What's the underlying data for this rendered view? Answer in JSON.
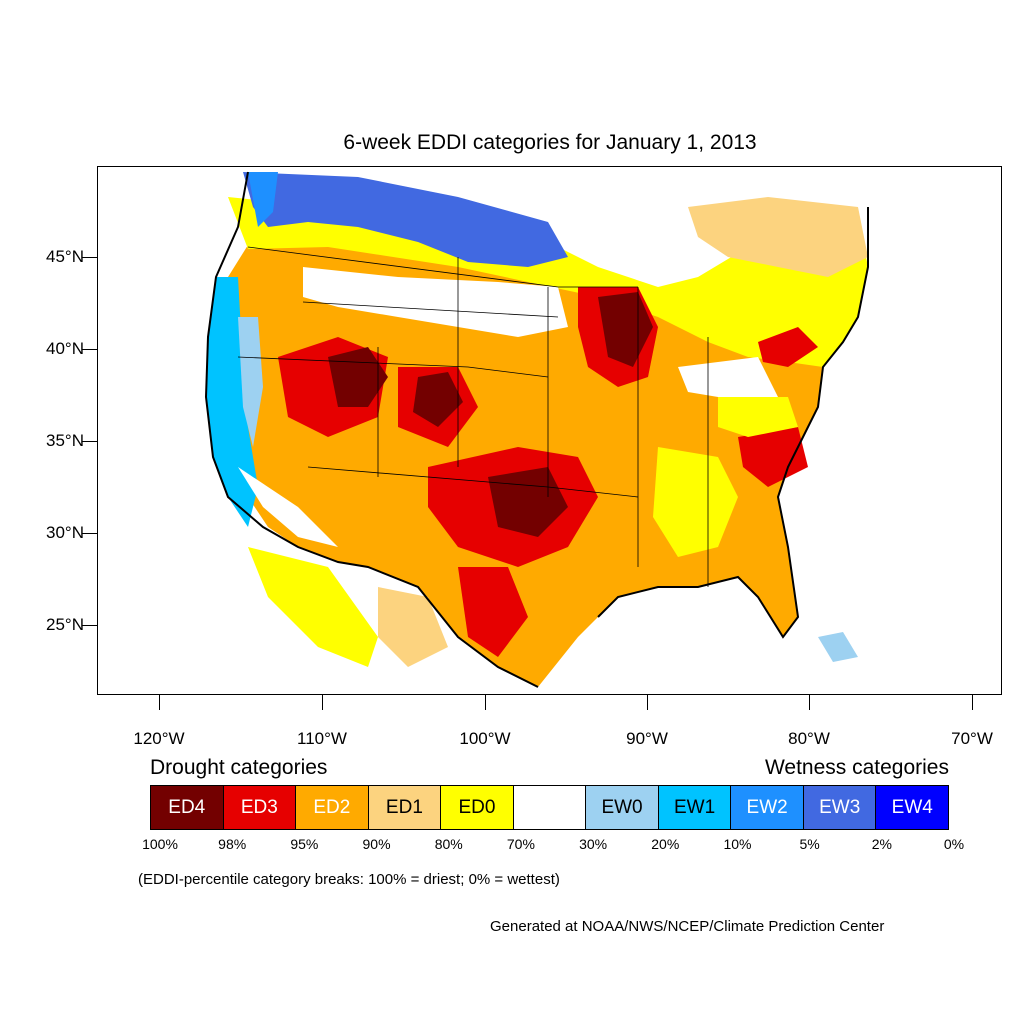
{
  "title": "6-week EDDI categories for January 1, 2013",
  "lat_labels": [
    "45°N",
    "40°N",
    "35°N",
    "30°N",
    "25°N"
  ],
  "lon_labels": [
    "120°W",
    "110°W",
    "100°W",
    "90°W",
    "80°W",
    "70°W"
  ],
  "legend": {
    "drought_heading": "Drought categories",
    "wetness_heading": "Wetness categories",
    "categories": [
      {
        "label": "ED4",
        "color": "#730000",
        "text_color": "#ffffff"
      },
      {
        "label": "ED3",
        "color": "#e60000",
        "text_color": "#ffffff"
      },
      {
        "label": "ED2",
        "color": "#ffaa00",
        "text_color": "#ffffff"
      },
      {
        "label": "ED1",
        "color": "#fcd37f",
        "text_color": "#000000"
      },
      {
        "label": "ED0",
        "color": "#ffff00",
        "text_color": "#000000"
      },
      {
        "label": "",
        "color": "#ffffff",
        "text_color": "#000000"
      },
      {
        "label": "EW0",
        "color": "#9dd1f1",
        "text_color": "#000000"
      },
      {
        "label": "EW1",
        "color": "#00c3ff",
        "text_color": "#000000"
      },
      {
        "label": "EW2",
        "color": "#1e90ff",
        "text_color": "#ffffff"
      },
      {
        "label": "EW3",
        "color": "#4169e1",
        "text_color": "#ffffff"
      },
      {
        "label": "EW4",
        "color": "#0000ff",
        "text_color": "#ffffff"
      }
    ],
    "breaks": [
      "100%",
      "98%",
      "95%",
      "90%",
      "80%",
      "70%",
      "30%",
      "20%",
      "10%",
      "5%",
      "2%",
      "0%"
    ]
  },
  "note": "(EDDI-percentile category breaks: 100% = driest; 0% = wettest)",
  "credit": "Generated at NOAA/NWS/NCEP/Climate Prediction Center"
}
